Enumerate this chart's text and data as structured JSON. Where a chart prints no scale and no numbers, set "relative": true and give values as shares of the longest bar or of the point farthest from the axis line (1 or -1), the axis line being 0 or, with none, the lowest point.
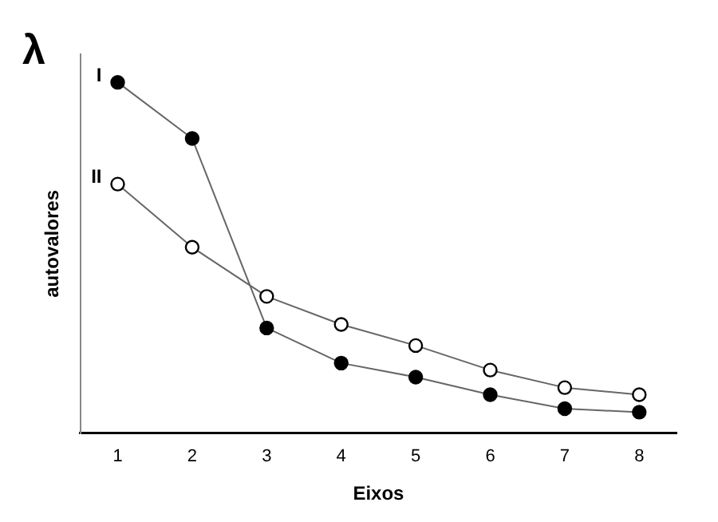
{
  "chart_data": {
    "type": "line",
    "relative": true,
    "xlabel": "Eixos",
    "ylabel": "autovalores",
    "annotations": [
      "λ"
    ],
    "categories": [
      "1",
      "2",
      "3",
      "4",
      "5",
      "6",
      "7",
      "8"
    ],
    "series": [
      {
        "name": "I",
        "color": "#000000",
        "marker": "circle",
        "values": [
          1,
          0.84,
          0.3,
          0.2,
          0.16,
          0.11,
          0.07,
          0.06
        ]
      },
      {
        "name": "II",
        "color": "#000000",
        "marker": "circle",
        "values": [
          0.71,
          0.53,
          0.39,
          0.31,
          0.25,
          0.18,
          0.13,
          0.11
        ]
      }
    ],
    "legend": false,
    "grid": false
  }
}
